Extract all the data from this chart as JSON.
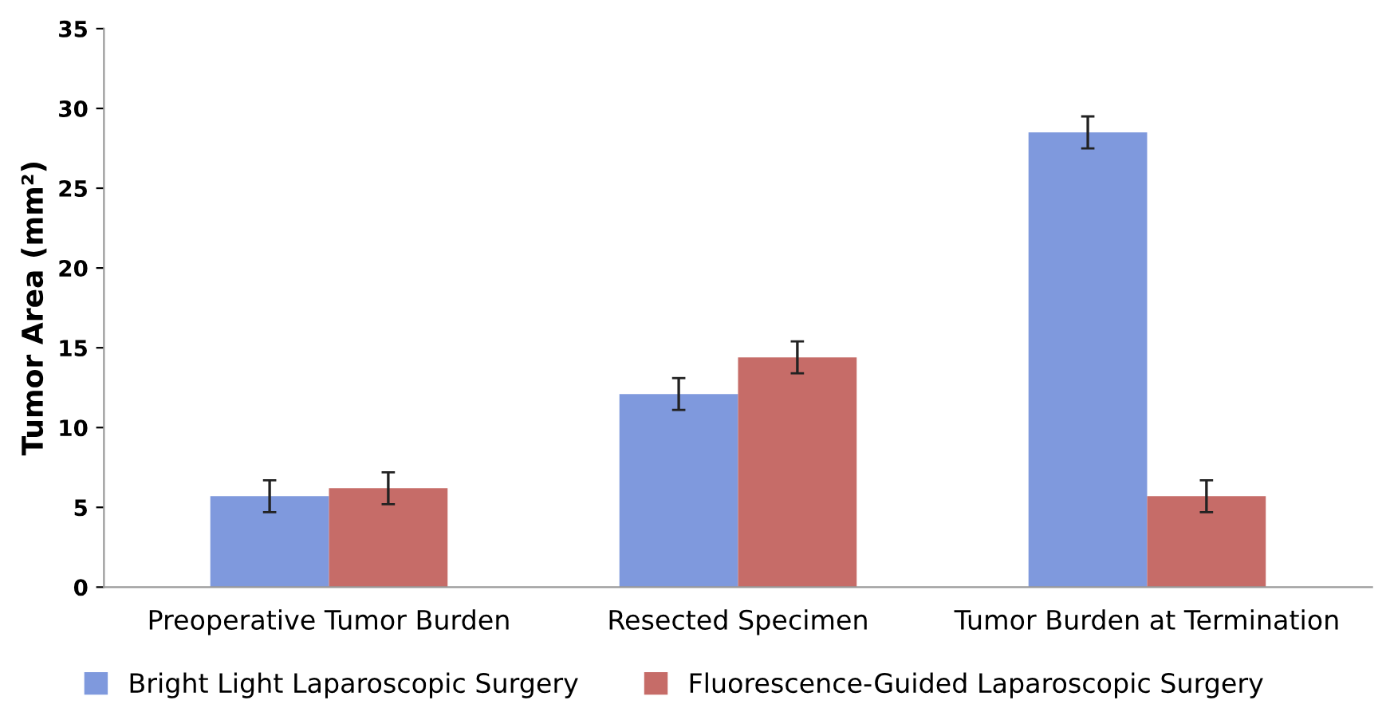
{
  "chart_data": {
    "type": "bar",
    "ylabel": "Tumor Area (mm²)",
    "categories": [
      "Preoperative Tumor Burden",
      "Resected Specimen",
      "Tumor Burden at Termination"
    ],
    "series": [
      {
        "name": "Bright Light Laparoscopic Surgery",
        "color": "#7f99dd",
        "values": [
          5.7,
          12.1,
          28.5
        ],
        "errors": [
          1.0,
          1.0,
          1.0
        ]
      },
      {
        "name": "Fluorescence-Guided Laparoscopic Surgery",
        "color": "#c66c68",
        "values": [
          6.2,
          14.4,
          5.7
        ],
        "errors": [
          1.0,
          1.0,
          1.0
        ]
      }
    ],
    "ylim": [
      0,
      35
    ],
    "yticks": [
      0,
      5,
      10,
      15,
      20,
      25,
      30,
      35
    ],
    "grid": false,
    "legend": "bottom"
  }
}
